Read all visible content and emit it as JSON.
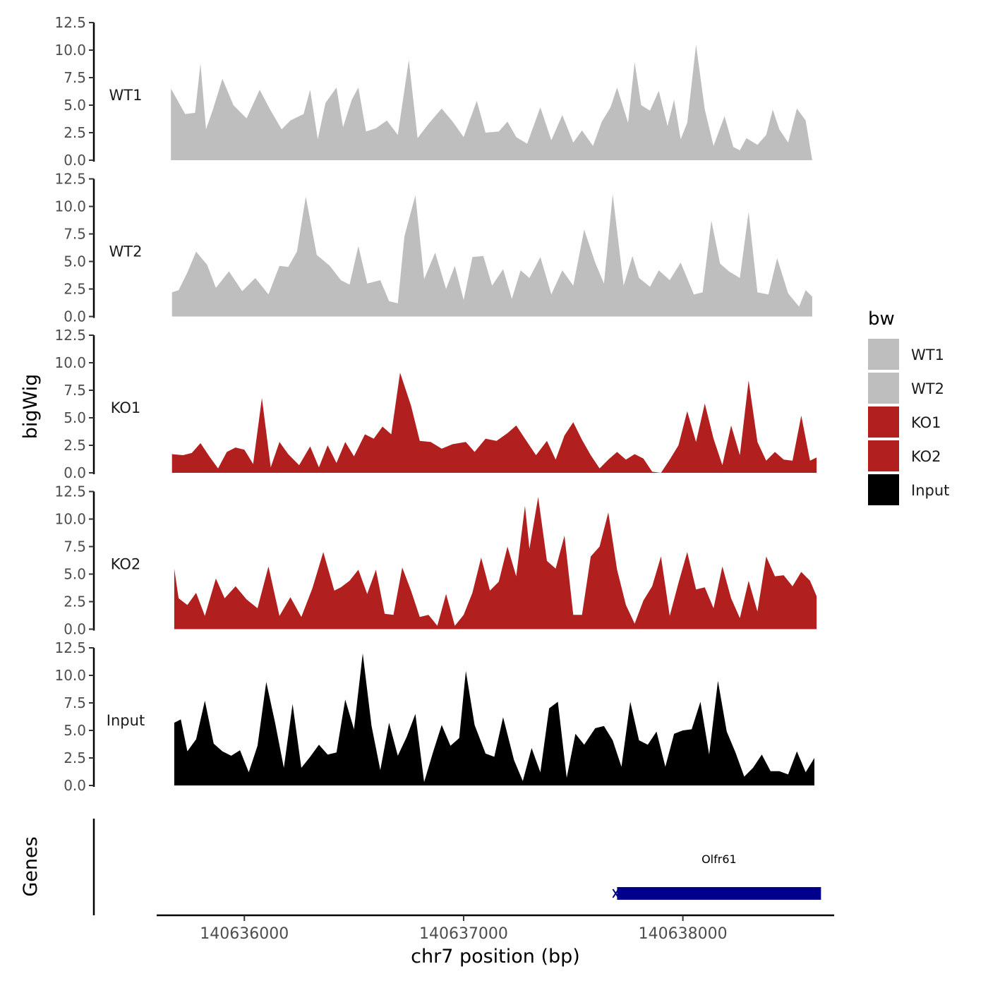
{
  "chart_data": {
    "type": "area",
    "ylabel": "bigWig",
    "xlabel": "chr7 position (bp)",
    "genes_panel_label": "Genes",
    "x_range": [
      140635600,
      140638690
    ],
    "x_ticks": [
      140636000,
      140637000,
      140638000
    ],
    "x_tick_labels": [
      "140636000",
      "140637000",
      "140638000"
    ],
    "ylim": [
      0,
      12.5
    ],
    "y_ticks": [
      0,
      2.5,
      5,
      7.5,
      10,
      12.5
    ],
    "y_tick_labels": [
      "0.0",
      "2.5",
      "5.0",
      "7.5",
      "10.0",
      "12.5"
    ],
    "legend": {
      "title": "bw",
      "position": "right",
      "entries": [
        {
          "label": "WT1",
          "color": "#bebebe"
        },
        {
          "label": "WT2",
          "color": "#bebebe"
        },
        {
          "label": "KO1",
          "color": "#b21f1f"
        },
        {
          "label": "KO2",
          "color": "#b21f1f"
        },
        {
          "label": "Input",
          "color": "#000000"
        }
      ]
    },
    "series": [
      {
        "name": "WT1",
        "color": "#bebebe",
        "x": [
          140635665,
          140635730,
          140635775,
          140635800,
          140635825,
          140635855,
          140635900,
          140635950,
          140636010,
          140636070,
          140636120,
          140636170,
          140636210,
          140636270,
          140636300,
          140636335,
          140636370,
          140636420,
          140636450,
          140636490,
          140636520,
          140636555,
          140636600,
          140636650,
          140636700,
          140636750,
          140636790,
          140636840,
          140636900,
          140636950,
          140637000,
          140637060,
          140637100,
          140637160,
          140637200,
          140637240,
          140637290,
          140637350,
          140637400,
          140637450,
          140637500,
          140637540,
          140637590,
          140637630,
          140637670,
          140637700,
          140637750,
          140637780,
          140637810,
          140637850,
          140637890,
          140637930,
          140637960,
          140637990,
          140638020,
          140638060,
          140638100,
          140638140,
          140638190,
          140638230,
          140638260,
          140638290,
          140638340,
          140638380,
          140638410,
          140638440,
          140638480,
          140638520,
          140638560,
          140638590
        ],
        "y": [
          6.5,
          4.2,
          4.3,
          8.8,
          2.8,
          4.5,
          7.4,
          5.0,
          3.8,
          6.4,
          4.5,
          2.8,
          3.6,
          4.2,
          6.4,
          1.9,
          5.2,
          6.6,
          3.0,
          5.5,
          6.6,
          2.6,
          2.9,
          3.6,
          2.3,
          9.1,
          2.0,
          3.3,
          4.7,
          3.5,
          2.1,
          5.4,
          2.5,
          2.6,
          3.5,
          2.1,
          1.5,
          4.8,
          1.8,
          4.1,
          1.6,
          2.7,
          1.3,
          3.5,
          4.8,
          6.6,
          3.4,
          8.9,
          5.0,
          4.5,
          6.3,
          3.1,
          5.5,
          1.9,
          3.4,
          10.5,
          4.6,
          1.3,
          4.0,
          1.2,
          0.9,
          2.0,
          1.4,
          2.3,
          4.6,
          2.8,
          1.6,
          4.7,
          3.6,
          0
        ]
      },
      {
        "name": "WT2",
        "color": "#bebebe",
        "x": [
          140635670,
          140635700,
          140635740,
          140635780,
          140635830,
          140635870,
          140635930,
          140635990,
          140636050,
          140636110,
          140636160,
          140636200,
          140636240,
          140636280,
          140636330,
          140636390,
          140636440,
          140636480,
          140636520,
          140636560,
          140636620,
          140636660,
          140636700,
          140636730,
          140636780,
          140636820,
          140636870,
          140636920,
          140636960,
          140637000,
          140637040,
          140637090,
          140637130,
          140637180,
          140637220,
          140637260,
          140637300,
          140637350,
          140637400,
          140637450,
          140637500,
          140637550,
          140637600,
          140637640,
          140637680,
          140637730,
          140637770,
          140637800,
          140637850,
          140637890,
          140637940,
          140637990,
          140638050,
          140638090,
          140638130,
          140638170,
          140638210,
          140638260,
          140638300,
          140638340,
          140638390,
          140638430,
          140638480,
          140638530,
          140638560,
          140638590
        ],
        "y": [
          2.2,
          2.4,
          4.0,
          5.9,
          4.7,
          2.6,
          4.1,
          2.3,
          3.5,
          2.0,
          4.6,
          4.5,
          5.9,
          10.9,
          5.6,
          4.6,
          3.3,
          2.9,
          6.4,
          3.0,
          3.3,
          1.4,
          1.2,
          7.3,
          11.0,
          3.4,
          5.8,
          2.5,
          4.6,
          1.5,
          5.4,
          5.5,
          2.8,
          4.3,
          1.6,
          4.2,
          3.5,
          5.4,
          2.0,
          4.2,
          2.8,
          7.9,
          4.9,
          3.0,
          11.1,
          2.8,
          5.5,
          3.5,
          2.7,
          4.2,
          3.3,
          4.9,
          2.0,
          2.2,
          8.7,
          4.8,
          4.1,
          3.5,
          9.5,
          2.2,
          2.0,
          5.3,
          2.1,
          0.9,
          2.4,
          1.8
        ]
      },
      {
        "name": "KO1",
        "color": "#b21f1f",
        "x": [
          140635670,
          140635720,
          140635760,
          140635800,
          140635840,
          140635880,
          140635920,
          140635960,
          140636000,
          140636040,
          140636080,
          140636120,
          140636160,
          140636200,
          140636250,
          140636300,
          140636340,
          140636380,
          140636420,
          140636460,
          140636500,
          140636550,
          140636590,
          140636630,
          140636670,
          140636710,
          140636760,
          140636800,
          140636850,
          140636900,
          140636950,
          140637010,
          140637050,
          140637100,
          140637150,
          140637200,
          140637240,
          140637280,
          140637330,
          140637380,
          140637420,
          140637460,
          140637500,
          140637540,
          140637580,
          140637620,
          140637660,
          140637700,
          140637740,
          140637780,
          140637820,
          140637860,
          140637900,
          140637940,
          140637980,
          140638020,
          140638060,
          140638100,
          140638140,
          140638180,
          140638220,
          140638260,
          140638300,
          140638340,
          140638380,
          140638420,
          140638460,
          140638500,
          140638540,
          140638580,
          140638610
        ],
        "y": [
          1.7,
          1.6,
          1.8,
          2.7,
          1.5,
          0.4,
          1.9,
          2.3,
          2.1,
          0.8,
          6.8,
          0.5,
          2.8,
          1.7,
          0.7,
          2.4,
          0.5,
          2.5,
          0.9,
          2.8,
          1.5,
          3.5,
          3.1,
          4.2,
          3.5,
          9.1,
          6.1,
          2.9,
          2.8,
          2.2,
          2.6,
          2.8,
          1.9,
          3.1,
          2.9,
          3.6,
          4.3,
          3.1,
          1.6,
          2.9,
          1.2,
          3.4,
          4.6,
          3.0,
          1.6,
          0.4,
          1.2,
          1.9,
          1.2,
          1.7,
          1.3,
          0.1,
          0.0,
          1.2,
          2.5,
          5.6,
          2.8,
          6.3,
          3.1,
          0.7,
          4.3,
          1.6,
          8.4,
          2.8,
          1.1,
          1.9,
          1.2,
          1.1,
          5.2,
          1.1,
          1.4
        ]
      },
      {
        "name": "KO2",
        "color": "#b21f1f",
        "x": [
          140635680,
          140635700,
          140635740,
          140635780,
          140635820,
          140635870,
          140635910,
          140635960,
          140636010,
          140636060,
          140636110,
          140636160,
          140636210,
          140636260,
          140636310,
          140636360,
          140636410,
          140636440,
          140636480,
          140636520,
          140636560,
          140636600,
          140636640,
          140636680,
          140636720,
          140636760,
          140636800,
          140636840,
          140636880,
          140636920,
          140636960,
          140637000,
          140637040,
          140637080,
          140637120,
          140637160,
          140637200,
          140637240,
          140637280,
          140637300,
          140637340,
          140637380,
          140637420,
          140637460,
          140637500,
          140637540,
          140637580,
          140637620,
          140637660,
          140637700,
          140637740,
          140637780,
          140637820,
          140637860,
          140637900,
          140637940,
          140637980,
          140638020,
          140638060,
          140638100,
          140638140,
          140638180,
          140638220,
          140638260,
          140638300,
          140638340,
          140638380,
          140638420,
          140638460,
          140638500,
          140638540,
          140638580,
          140638610
        ],
        "y": [
          5.5,
          2.8,
          2.2,
          3.3,
          1.2,
          4.6,
          2.8,
          3.9,
          2.7,
          1.9,
          5.7,
          1.2,
          2.9,
          1.1,
          3.7,
          7.0,
          3.5,
          3.8,
          4.4,
          5.4,
          3.2,
          5.4,
          1.4,
          1.3,
          5.6,
          3.5,
          1.1,
          1.3,
          0.3,
          3.2,
          0.3,
          1.3,
          3.3,
          6.5,
          3.5,
          4.3,
          7.5,
          4.8,
          11.2,
          7.3,
          12.0,
          6.2,
          5.5,
          8.5,
          1.3,
          1.3,
          6.6,
          7.5,
          10.6,
          5.4,
          2.2,
          0.5,
          2.6,
          3.9,
          6.6,
          1.2,
          4.2,
          7.0,
          3.6,
          3.8,
          1.9,
          5.7,
          2.8,
          1.0,
          4.4,
          1.6,
          6.6,
          4.8,
          4.9,
          3.9,
          5.2,
          4.4,
          3.0
        ]
      },
      {
        "name": "Input",
        "color": "#000000",
        "x": [
          140635680,
          140635710,
          140635740,
          140635780,
          140635820,
          140635860,
          140635900,
          140635940,
          140635980,
          140636020,
          140636060,
          140636100,
          140636140,
          140636180,
          140636220,
          140636260,
          140636300,
          140636340,
          140636380,
          140636420,
          140636460,
          140636500,
          140636540,
          140636580,
          140636620,
          140636660,
          140636700,
          140636740,
          140636780,
          140636820,
          140636860,
          140636900,
          140636940,
          140636980,
          140637010,
          140637050,
          140637100,
          140637140,
          140637180,
          140637230,
          140637270,
          140637310,
          140637350,
          140637390,
          140637430,
          140637470,
          140637510,
          140637550,
          140637600,
          140637640,
          140637680,
          140637720,
          140637760,
          140637800,
          140637840,
          140637880,
          140637920,
          140637960,
          140638000,
          140638040,
          140638080,
          140638120,
          140638160,
          140638200,
          140638240,
          140638280,
          140638320,
          140638360,
          140638400,
          140638440,
          140638480,
          140638520,
          140638560,
          140638600
        ],
        "y": [
          5.7,
          6.0,
          3.1,
          4.2,
          7.7,
          3.8,
          3.1,
          2.7,
          3.2,
          1.2,
          3.6,
          9.4,
          5.7,
          1.6,
          7.4,
          1.6,
          2.6,
          3.7,
          2.8,
          3.0,
          7.8,
          5.1,
          12.0,
          5.4,
          1.4,
          5.7,
          2.7,
          4.4,
          6.5,
          0.3,
          3.0,
          5.5,
          3.6,
          4.3,
          10.4,
          5.5,
          2.9,
          2.6,
          6.2,
          2.3,
          0.4,
          3.4,
          1.2,
          7.0,
          7.6,
          0.7,
          4.7,
          3.7,
          5.2,
          5.4,
          4.1,
          1.7,
          7.6,
          4.1,
          3.7,
          4.9,
          1.7,
          4.7,
          5.0,
          5.1,
          7.6,
          2.8,
          9.5,
          4.9,
          3.0,
          0.8,
          1.6,
          2.8,
          1.3,
          1.3,
          1.0,
          3.1,
          1.2,
          2.5
        ]
      }
    ],
    "genes": [
      {
        "name": "Olfr61",
        "start": 140637700,
        "end": 140638630,
        "strand": "-",
        "color": "#00008b"
      }
    ]
  }
}
